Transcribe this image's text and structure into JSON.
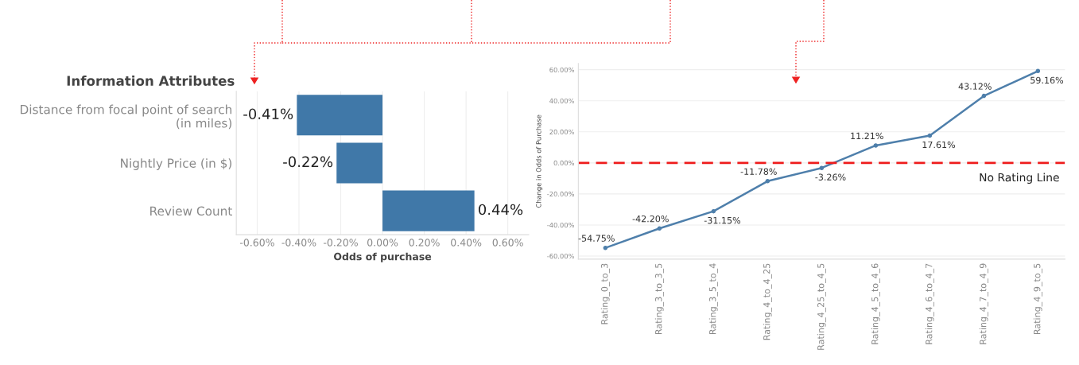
{
  "chart_data": [
    {
      "type": "bar",
      "orientation": "horizontal",
      "ylabel": "Information Attributes",
      "xlabel": "Odds of purchase",
      "categories": [
        "Distance from focal point of search\n(in miles)",
        "Nightly Price (in $)",
        "Review Count"
      ],
      "values": [
        -0.41,
        -0.22,
        0.44
      ],
      "value_labels": [
        "-0.41%",
        "-0.22%",
        "0.44%"
      ],
      "color": "#4078a8",
      "xlim": [
        -0.7,
        0.7
      ],
      "xticks": [
        {
          "value": -0.6,
          "label": "-0.60%"
        },
        {
          "value": -0.4,
          "label": "-0.40%"
        },
        {
          "value": -0.2,
          "label": "-0.20%"
        },
        {
          "value": 0,
          "label": "0.00%"
        },
        {
          "value": 0.2,
          "label": "0.20%"
        },
        {
          "value": 0.4,
          "label": "0.40%"
        },
        {
          "value": 0.6,
          "label": "0.60%"
        }
      ],
      "grid": "x"
    },
    {
      "type": "line",
      "ylabel": "Change in Odds of Purchase",
      "categories": [
        "Rating_0_to_3",
        "Rating_3_to_3_5",
        "Rating_3_5_to_4",
        "Rating_4_to_4_25",
        "Rating_4_25_to_4_5",
        "Rating_4_5_to_4_6",
        "Rating_4_6_to_4_7",
        "Rating_4_7_to_4_9",
        "Rating_4_9_to_5"
      ],
      "values": [
        -54.75,
        -42.2,
        -31.15,
        -11.78,
        -3.26,
        11.21,
        17.61,
        43.12,
        59.16
      ],
      "value_labels": [
        "-54.75%",
        "-42.20%",
        "-31.15%",
        "-11.78%",
        "-3.26%",
        "11.21%",
        "17.61%",
        "43.12%",
        "59.16%"
      ],
      "color": "#4e7fab",
      "marker": "circle",
      "line_style": "solid",
      "ylim": [
        -62,
        64
      ],
      "yticks": [
        {
          "value": -60,
          "label": "-60.00%"
        },
        {
          "value": -40,
          "label": "-40.00%"
        },
        {
          "value": -20,
          "label": "-20.00%"
        },
        {
          "value": 0,
          "label": "0.00%"
        },
        {
          "value": 20,
          "label": "20.00%"
        },
        {
          "value": 40,
          "label": "40.00%"
        },
        {
          "value": 60,
          "label": "60.00%"
        }
      ],
      "grid": "y",
      "ref_lines": [
        {
          "axis": "y",
          "value": 0,
          "label": "No Rating Line",
          "color": "#ee1c1c",
          "line_style": "dashed"
        }
      ]
    }
  ]
}
